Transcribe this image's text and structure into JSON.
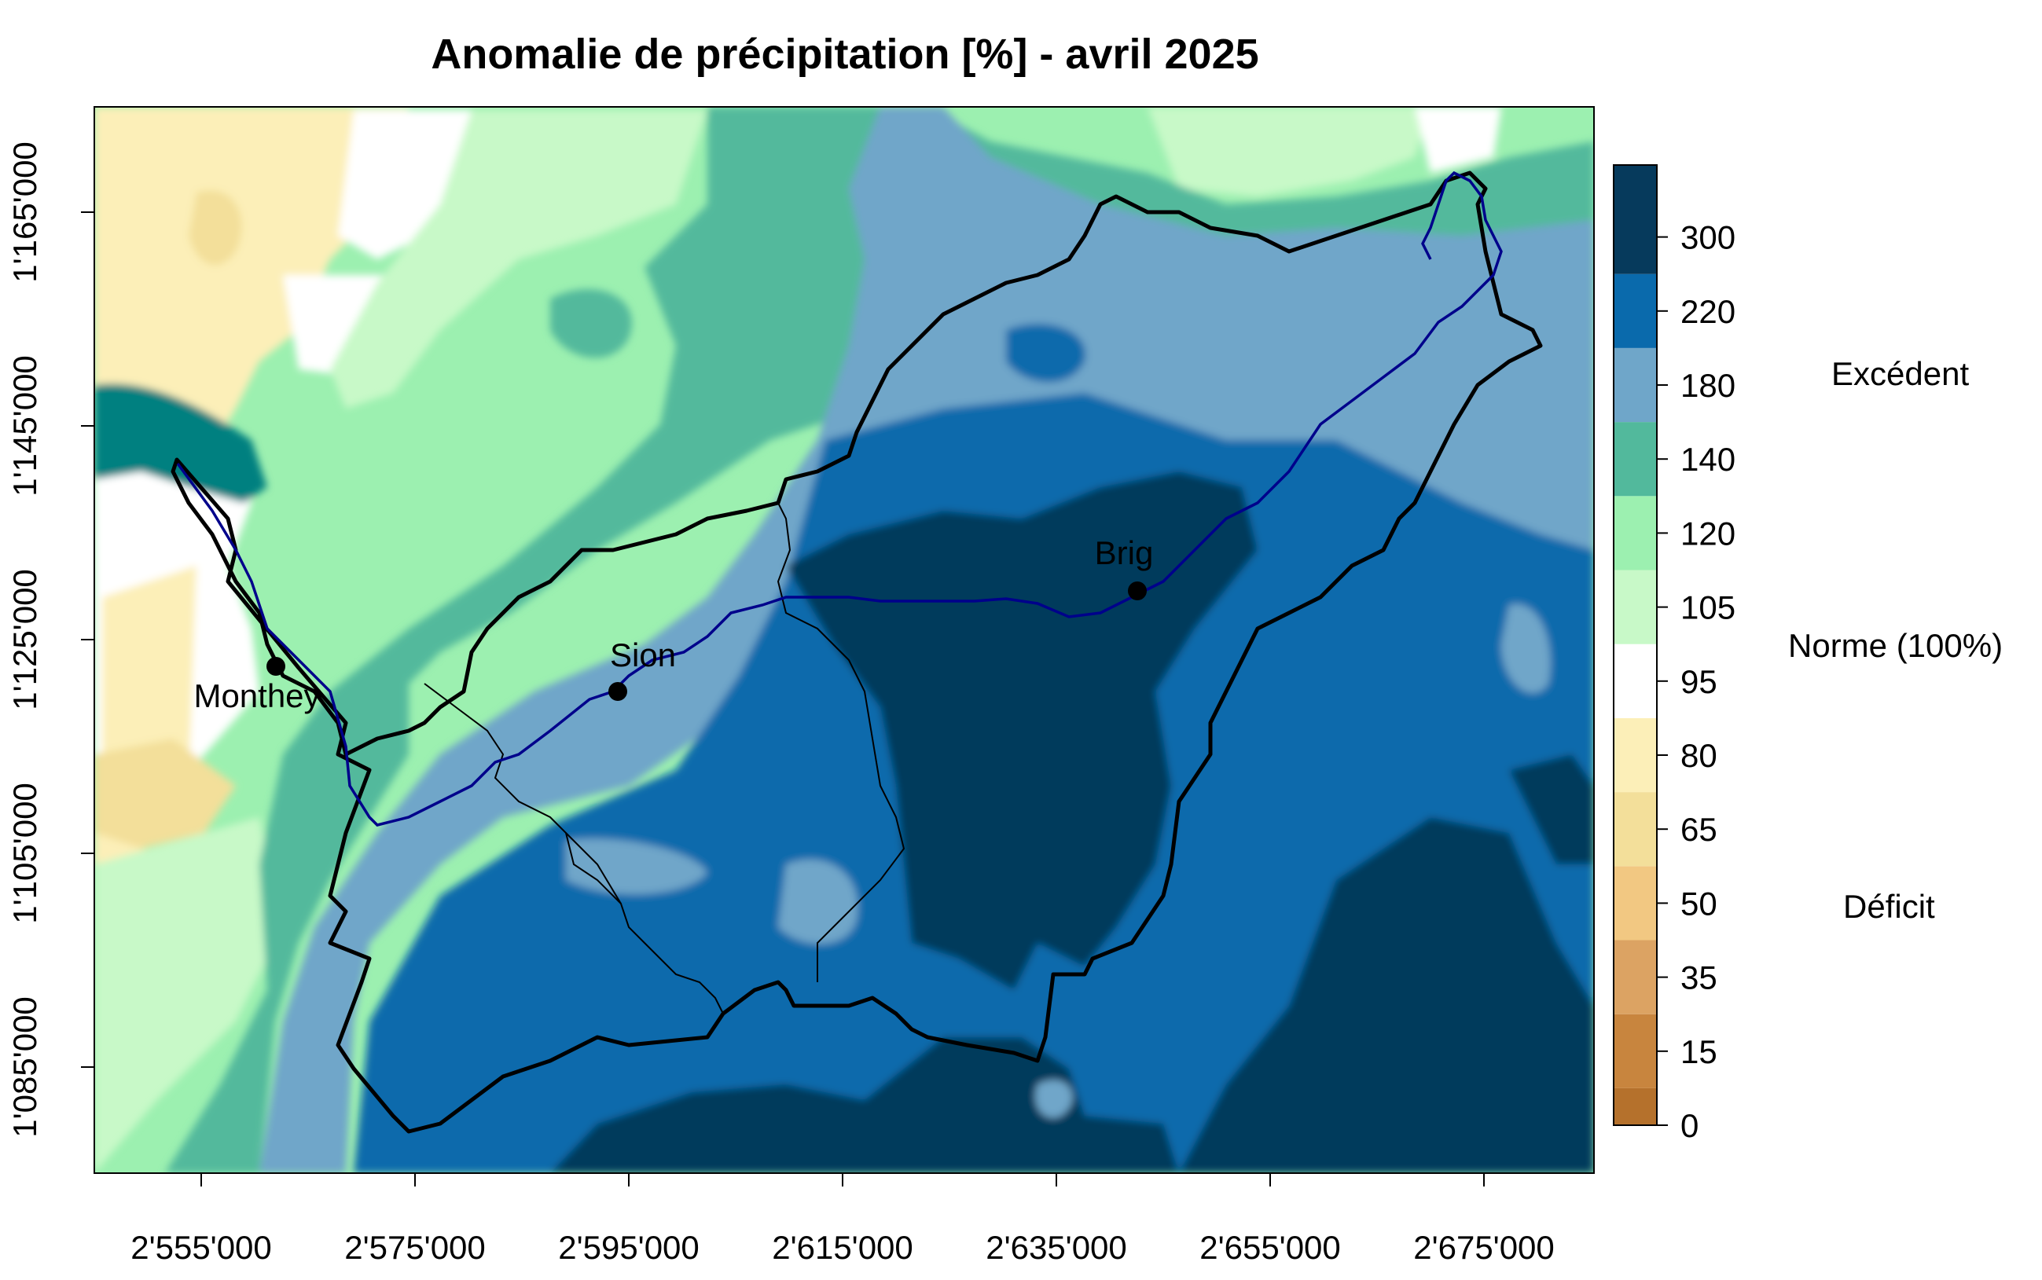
{
  "title": "Anomalie de précipitation [%] - avril 2025",
  "map": {
    "x_ticks": [
      "2'555'000",
      "2'575'000",
      "2'595'000",
      "2'615'000",
      "2'635'000",
      "2'655'000",
      "2'675'000"
    ],
    "y_ticks": [
      "1'085'000",
      "1'105'000",
      "1'125'000",
      "1'145'000",
      "1'165'000"
    ],
    "cities": [
      {
        "name": "Monthey"
      },
      {
        "name": "Sion"
      },
      {
        "name": "Brig"
      }
    ]
  },
  "legend": {
    "labels": [
      "0",
      "15",
      "35",
      "50",
      "65",
      "80",
      "95",
      "105",
      "120",
      "140",
      "180",
      "220",
      "300"
    ],
    "colors": [
      "#b5712c",
      "#c8853e",
      "#dca363",
      "#f2c882",
      "#f3df9a",
      "#fcefb8",
      "#ffffff",
      "#c8f9c8",
      "#9cf0b0",
      "#52b99c",
      "#6fa6c9",
      "#0a6aac",
      "#063a5c"
    ],
    "excedent": "Excédent",
    "norme": "Norme (100%)",
    "deficit": "Déficit"
  }
}
